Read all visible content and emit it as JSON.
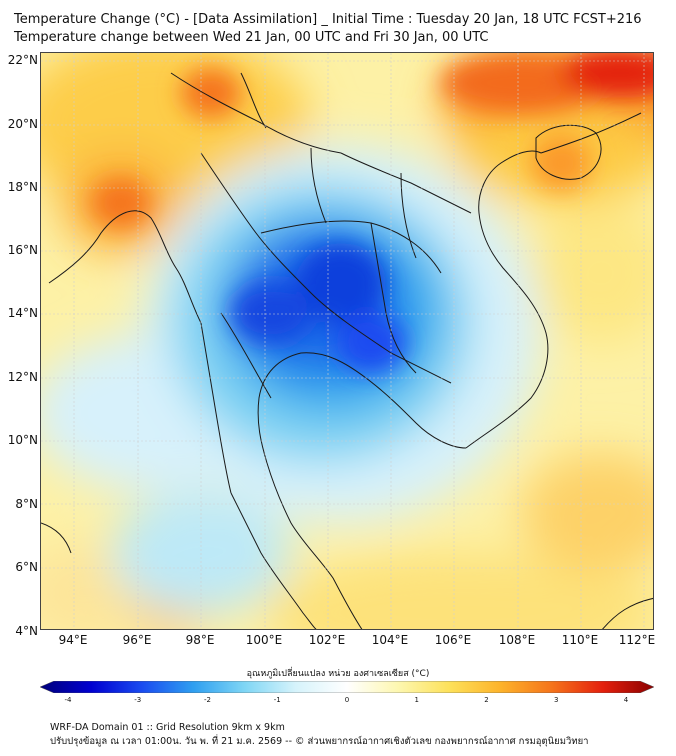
{
  "title_line1": "Temperature Change (°C) - [Data Assimilation] _ Initial Time : Tuesday 20 Jan, 18 UTC FCST+216",
  "title_line2": "Temperature change between Wed 21 Jan, 00 UTC and Fri 30 Jan, 00 UTC",
  "lat_labels": [
    "22°N",
    "20°N",
    "18°N",
    "16°N",
    "14°N",
    "12°N",
    "10°N",
    "8°N",
    "6°N",
    "4°N"
  ],
  "lon_labels": [
    "94°E",
    "96°E",
    "98°E",
    "100°E",
    "102°E",
    "104°E",
    "106°E",
    "108°E",
    "110°E",
    "112°E"
  ],
  "colorbar": {
    "title": "อุณหภูมิเปลี่ยนแปลง หน่วย องศาเซลเซียส (°C)",
    "ticks": [
      "-4",
      "-3",
      "-2",
      "-1",
      "0",
      "1",
      "2",
      "3",
      "4"
    ],
    "colors": [
      "#00007a",
      "#0000d0",
      "#1a4cf0",
      "#2f9ff0",
      "#7fd6f5",
      "#d6f3fb",
      "#ffffff",
      "#fdf7b0",
      "#fde15a",
      "#fdb32b",
      "#f5741b",
      "#e4200d",
      "#8a0000"
    ]
  },
  "footer_line1": "WRF-DA Domain 01 :: Grid Resolution 9km x 9km",
  "footer_line2": "ปรับปรุงข้อมูล ณ เวลา 01:00น. วัน พ. ที่ 21 ม.ค. 2569 -- © ส่วนพยากรณ์อากาศเชิงตัวเลข กองพยากรณ์อากาศ กรมอุตุนิยมวิทยา"
}
